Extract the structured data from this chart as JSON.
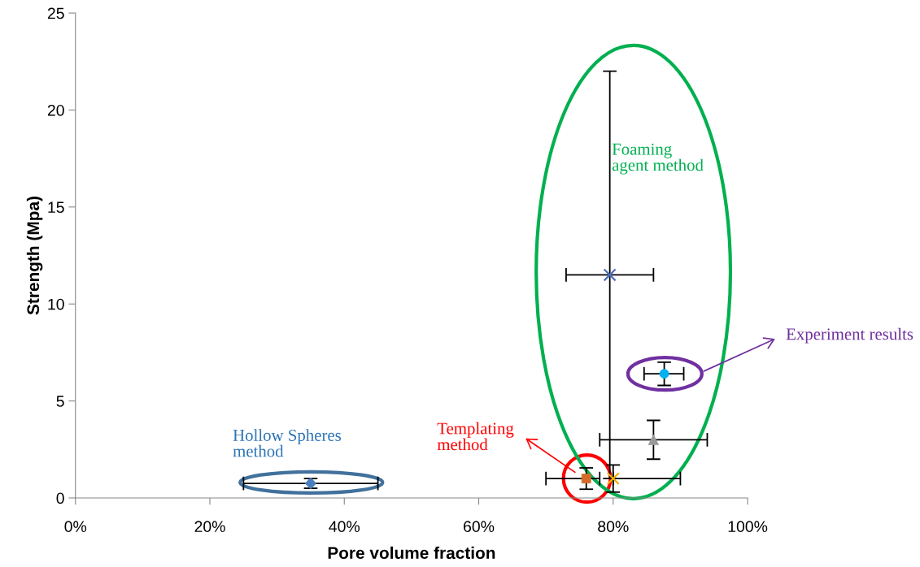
{
  "chart_data": {
    "type": "scatter",
    "xlabel": "Pore volume fraction",
    "ylabel": "Strength (Mpa)",
    "xlim": [
      0,
      1
    ],
    "ylim": [
      0,
      25
    ],
    "xticks": [
      {
        "value": 0,
        "label": "0%"
      },
      {
        "value": 0.2,
        "label": "20%"
      },
      {
        "value": 0.4,
        "label": "40%"
      },
      {
        "value": 0.6,
        "label": "60%"
      },
      {
        "value": 0.8,
        "label": "80%"
      },
      {
        "value": 1,
        "label": "100%"
      }
    ],
    "yticks": [
      0,
      5,
      10,
      15,
      20,
      25
    ],
    "grid": false,
    "legend": false,
    "series": [
      {
        "color": "#4a7ebb",
        "marker": "diamond",
        "x": [
          0.35
        ],
        "values": [
          0.75
        ],
        "errors": [
          [
            0.5,
            1.0
          ]
        ],
        "xerrors": [
          [
            0.25,
            0.45
          ]
        ]
      },
      {
        "color": "#d46b2a",
        "marker": "square",
        "x": [
          0.76
        ],
        "values": [
          1.0
        ],
        "errors": [
          [
            0.45,
            1.55
          ]
        ],
        "xerrors": [
          [
            0.7,
            0.78
          ]
        ]
      },
      {
        "color": "#4f6fbe",
        "marker": "cross",
        "x": [
          0.795
        ],
        "values": [
          11.5
        ],
        "errors": [
          [
            1.0,
            22.0
          ]
        ],
        "xerrors": [
          [
            0.73,
            0.86
          ]
        ]
      },
      {
        "color": "#f0b000",
        "marker": "cross",
        "x": [
          0.8
        ],
        "values": [
          1.0
        ],
        "errors": [
          [
            0.3,
            1.7
          ]
        ],
        "xerrors": [
          [
            0.8,
            0.9
          ]
        ]
      },
      {
        "color": "#999999",
        "marker": "triangle",
        "x": [
          0.86
        ],
        "values": [
          3.0
        ],
        "errors": [
          [
            2.0,
            4.0
          ]
        ],
        "xerrors": [
          [
            0.78,
            0.94
          ]
        ]
      },
      {
        "color": "#00b0f0",
        "marker": "circle",
        "x": [
          0.876
        ],
        "values": [
          6.4
        ],
        "errors": [
          [
            5.8,
            7.0
          ]
        ],
        "xerrors": [
          [
            0.846,
            0.905
          ]
        ]
      }
    ],
    "annotations": [
      "Hollow Spheres\nmethod",
      "Templating\nmethod",
      "Foaming\nagent method",
      "Experiment results"
    ]
  }
}
